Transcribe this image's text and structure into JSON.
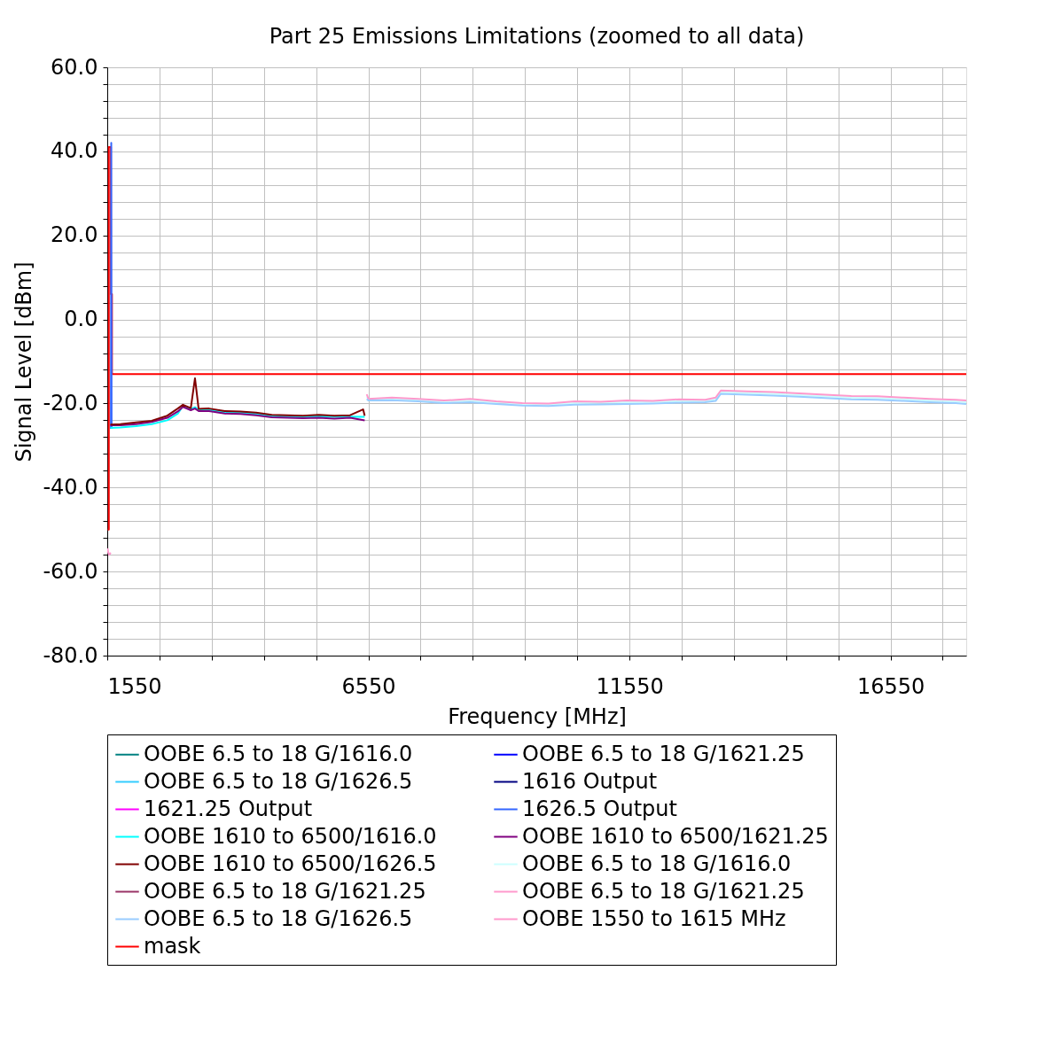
{
  "chart_data": {
    "type": "line",
    "title": "Part 25 Emissions Limitations (zoomed to all data)",
    "xlabel": "Frequency [MHz]",
    "ylabel": "Signal Level [dBm]",
    "xlim": [
      1550,
      18000
    ],
    "xticks": [
      1550,
      {
        "value": 2550,
        "label": null
      },
      {
        "value": 3550,
        "label": null
      },
      {
        "value": 4550,
        "label": null
      },
      {
        "value": 5550,
        "label": null
      },
      6550,
      {
        "value": 7550,
        "label": null
      },
      {
        "value": 8550,
        "label": null
      },
      {
        "value": 9550,
        "label": null
      },
      {
        "value": 10550,
        "label": null
      },
      11550,
      {
        "value": 12550,
        "label": null
      },
      {
        "value": 13550,
        "label": null
      },
      {
        "value": 14550,
        "label": null
      },
      {
        "value": 15550,
        "label": null
      },
      16550,
      {
        "value": 17550,
        "label": null
      }
    ],
    "ylim": [
      -80,
      60
    ],
    "yticks": [
      {
        "value": -80,
        "label": "-80.0"
      },
      {
        "value": -76,
        "label": null
      },
      {
        "value": -72,
        "label": null
      },
      {
        "value": -68,
        "label": null
      },
      {
        "value": -64,
        "label": null
      },
      {
        "value": -60,
        "label": "-60.0"
      },
      {
        "value": -56,
        "label": null
      },
      {
        "value": -52,
        "label": null
      },
      {
        "value": -48,
        "label": null
      },
      {
        "value": -44,
        "label": null
      },
      {
        "value": -40,
        "label": "-40.0"
      },
      {
        "value": -36,
        "label": null
      },
      {
        "value": -32,
        "label": null
      },
      {
        "value": -28,
        "label": null
      },
      {
        "value": -24,
        "label": null
      },
      {
        "value": -20,
        "label": "-20.0"
      },
      {
        "value": -16,
        "label": null
      },
      {
        "value": -12,
        "label": null
      },
      {
        "value": -8,
        "label": null
      },
      {
        "value": -4,
        "label": null
      },
      {
        "value": 0,
        "label": "0.0"
      },
      {
        "value": 4,
        "label": null
      },
      {
        "value": 8,
        "label": null
      },
      {
        "value": 12,
        "label": null
      },
      {
        "value": 16,
        "label": null
      },
      {
        "value": 20,
        "label": "20.0"
      },
      {
        "value": 24,
        "label": null
      },
      {
        "value": 28,
        "label": null
      },
      {
        "value": 32,
        "label": null
      },
      {
        "value": 36,
        "label": null
      },
      {
        "value": 40,
        "label": "40.0"
      },
      {
        "value": 44,
        "label": null
      },
      {
        "value": 48,
        "label": null
      },
      {
        "value": 52,
        "label": null
      },
      {
        "value": 56,
        "label": null
      },
      {
        "value": 60,
        "label": "60.0"
      }
    ],
    "grid": true,
    "legend": "bottom",
    "series": [
      {
        "name": "OOBE 6.5 to 18 G/1616.0",
        "color": "#008080"
      },
      {
        "name": "OOBE 6.5 to 18 G/1621.25",
        "color": "#0000ff"
      },
      {
        "name": "OOBE 6.5 to 18 G/1626.5",
        "color": "#33ccff"
      },
      {
        "name": "1616 Output",
        "color": "#000080"
      },
      {
        "name": "1621.25 Output",
        "color": "#ff00ff"
      },
      {
        "name": "1626.5 Output",
        "color": "#3366ff",
        "x": [
          1620,
          1626.5,
          1633
        ],
        "values": [
          -26,
          42,
          -26
        ]
      },
      {
        "name": "OOBE 1610 to 6500/1616.0",
        "color": "#00ffff",
        "x": [
          1610,
          1800,
          2100,
          2400,
          2700,
          2900,
          3000,
          3150,
          3230,
          3300,
          3500,
          3800,
          4100,
          4400,
          4700,
          5000,
          5300,
          5600,
          5900,
          6200,
          6480
        ],
        "values": [
          -25.8,
          -25.7,
          -25.4,
          -24.9,
          -24.0,
          -22.4,
          -20.6,
          -21.3,
          -20.9,
          -21.5,
          -21.5,
          -22.1,
          -22.2,
          -22.5,
          -23.0,
          -23.1,
          -23.2,
          -23.0,
          -23.2,
          -23.1,
          -23.2
        ]
      },
      {
        "name": "OOBE 1610 to 6500/1621.25",
        "color": "#800080",
        "x": [
          1610,
          1800,
          2100,
          2400,
          2700,
          2900,
          3000,
          3150,
          3230,
          3300,
          3500,
          3800,
          4100,
          4400,
          4700,
          5000,
          5300,
          5600,
          5900,
          6200,
          6480
        ],
        "values": [
          -25.2,
          -25.2,
          -24.9,
          -24.4,
          -23.4,
          -21.9,
          -20.8,
          -21.6,
          -21.2,
          -21.8,
          -21.8,
          -22.4,
          -22.5,
          -22.8,
          -23.3,
          -23.4,
          -23.5,
          -23.4,
          -23.6,
          -23.4,
          -24.0
        ]
      },
      {
        "name": "OOBE 1610 to 6500/1626.5",
        "color": "#800000",
        "x": [
          1610,
          1800,
          2100,
          2400,
          2700,
          2900,
          3000,
          3150,
          3230,
          3300,
          3500,
          3800,
          4100,
          4400,
          4700,
          5000,
          5300,
          5600,
          5900,
          6200,
          6450,
          6480
        ],
        "values": [
          -25.0,
          -24.9,
          -24.5,
          -24.1,
          -22.9,
          -21.2,
          -20.3,
          -21.1,
          -14.0,
          -21.3,
          -21.2,
          -21.8,
          -21.9,
          -22.2,
          -22.7,
          -22.8,
          -22.9,
          -22.7,
          -22.9,
          -22.8,
          -21.4,
          -22.9
        ]
      },
      {
        "name": "OOBE 6.5 to 18 G/1616.0",
        "color": "#ccffff",
        "x": [
          6520,
          6550,
          7000,
          7500,
          8000,
          8500,
          9000,
          9500,
          10000,
          10500,
          11000,
          11500,
          12000,
          12500,
          13000,
          13200,
          13300,
          13800,
          14300,
          14800,
          15300,
          15800,
          16300,
          16800,
          17300,
          17800,
          18000
        ],
        "values": [
          -18.4,
          -18.9,
          -18.8,
          -19.1,
          -19.5,
          -19.3,
          -19.7,
          -20.1,
          -20.2,
          -19.9,
          -19.8,
          -19.7,
          -19.6,
          -19.4,
          -19.3,
          -19.0,
          -17.2,
          -17.5,
          -17.7,
          -18.0,
          -18.3,
          -18.6,
          -18.7,
          -19.0,
          -19.3,
          -19.5,
          -19.7
        ]
      },
      {
        "name": "OOBE 6.5 to 18 G/1621.25",
        "color": "#993366"
      },
      {
        "name": "OOBE 6.5 to 18 G/1621.25",
        "color": "#ff99cc",
        "x": [
          6520,
          6550,
          7000,
          7500,
          8000,
          8500,
          9000,
          9500,
          10000,
          10500,
          11000,
          11500,
          12000,
          12500,
          13000,
          13200,
          13300,
          13800,
          14300,
          14800,
          15300,
          15800,
          16300,
          16800,
          17300,
          17800,
          18000
        ],
        "values": [
          -17.8,
          -18.9,
          -18.6,
          -18.9,
          -19.3,
          -18.9,
          -19.5,
          -19.9,
          -20.0,
          -19.5,
          -19.6,
          -19.3,
          -19.4,
          -19.0,
          -19.1,
          -18.6,
          -16.9,
          -17.1,
          -17.3,
          -17.6,
          -17.9,
          -18.2,
          -18.3,
          -18.6,
          -18.9,
          -19.1,
          -19.3
        ]
      },
      {
        "name": "OOBE 6.5 to 18 G/1626.5",
        "color": "#99ccff",
        "x": [
          6520,
          6550,
          7000,
          7500,
          8000,
          8500,
          9000,
          9500,
          10000,
          10500,
          11000,
          11500,
          12000,
          12500,
          13000,
          13200,
          13300,
          13800,
          14300,
          14800,
          15300,
          15800,
          16300,
          16800,
          17300,
          17800,
          18000
        ],
        "values": [
          -18.9,
          -19.3,
          -19.2,
          -19.5,
          -19.9,
          -19.7,
          -20.1,
          -20.5,
          -20.6,
          -20.3,
          -20.2,
          -20.1,
          -20.0,
          -19.8,
          -19.7,
          -19.4,
          -17.7,
          -17.9,
          -18.1,
          -18.4,
          -18.7,
          -19.0,
          -19.1,
          -19.4,
          -19.7,
          -19.9,
          -20.1
        ]
      },
      {
        "name": "OOBE 1550 to 1615 MHz",
        "color": "#ff99cc",
        "x": [
          1555,
          1570,
          1585,
          1600,
          1615
        ],
        "values": [
          -54.5,
          -55.5,
          -56.0,
          -55.8,
          -55.5
        ]
      },
      {
        "name": "mask",
        "color": "#ff0000",
        "x": [
          1559,
          1580,
          1580,
          1620,
          1620,
          1640,
          1640,
          18000
        ],
        "values": [
          -50,
          -50,
          41,
          41,
          6,
          6,
          -13,
          -13
        ]
      }
    ]
  }
}
